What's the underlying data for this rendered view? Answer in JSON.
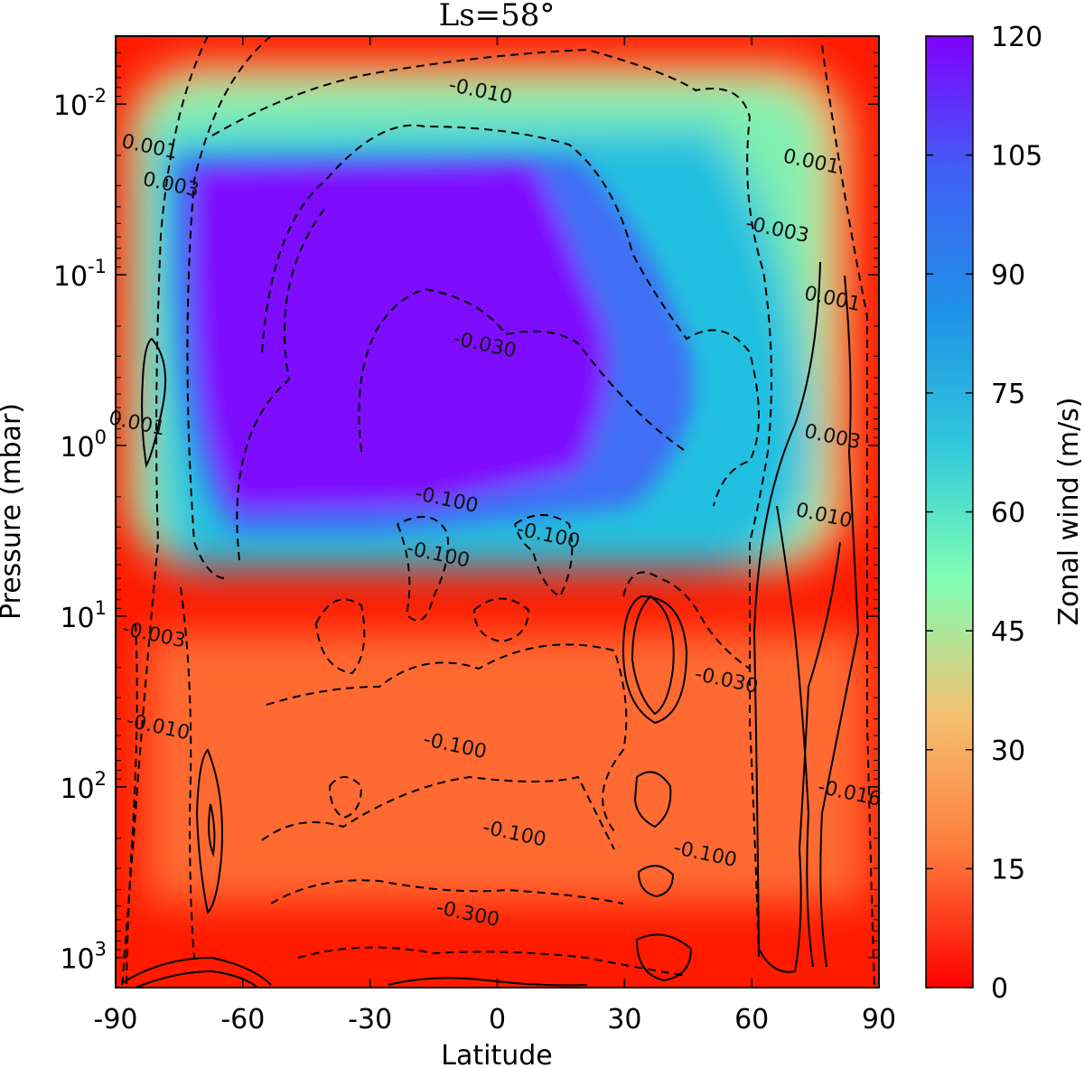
{
  "chart_data": {
    "type": "heatmap",
    "title": "Ls=58°",
    "xlabel": "Latitude",
    "ylabel": "Pressure (mbar)",
    "xlim": [
      -90,
      90
    ],
    "ylim": [
      1500,
      0.004
    ],
    "y_scale": "log",
    "y_inverted": true,
    "x_ticks": [
      "-90",
      "-60",
      "-30",
      "0",
      "30",
      "60",
      "90"
    ],
    "x_tick_values": [
      -90,
      -60,
      -30,
      0,
      30,
      60,
      90
    ],
    "y_ticks": [
      {
        "base": "10",
        "exp": "-2",
        "value": 0.01
      },
      {
        "base": "10",
        "exp": "-1",
        "value": 0.1
      },
      {
        "base": "10",
        "exp": "0",
        "value": 1
      },
      {
        "base": "10",
        "exp": "1",
        "value": 10
      },
      {
        "base": "10",
        "exp": "2",
        "value": 100
      },
      {
        "base": "10",
        "exp": "3",
        "value": 1000
      }
    ],
    "colorbar": {
      "label": "Zonal wind (m/s)",
      "ticks": [
        "0",
        "15",
        "30",
        "45",
        "60",
        "75",
        "90",
        "105",
        "120"
      ],
      "tick_values": [
        0,
        15,
        30,
        45,
        60,
        75,
        90,
        105,
        120
      ],
      "range": [
        0,
        120
      ],
      "colormap": "rainbow_r",
      "colors": [
        "#ff0000",
        "#ff7a3a",
        "#f5c070",
        "#80ffb4",
        "#30c8dc",
        "#1f90e8",
        "#4060f5",
        "#8000ff"
      ]
    },
    "contour_labels": [
      {
        "text": "0.001",
        "lat": -82,
        "p": 0.018
      },
      {
        "text": "0.003",
        "lat": -77,
        "p": 0.03
      },
      {
        "text": "-0.010",
        "lat": -4,
        "p": 0.0085
      },
      {
        "text": "0.001",
        "lat": 74,
        "p": 0.022
      },
      {
        "text": "-0.003",
        "lat": 66,
        "p": 0.055
      },
      {
        "text": "0.001",
        "lat": 79,
        "p": 0.14
      },
      {
        "text": "-0.030",
        "lat": -3,
        "p": 0.26
      },
      {
        "text": "0.001",
        "lat": -85,
        "p": 0.75
      },
      {
        "text": "0.003",
        "lat": 79,
        "p": 0.9
      },
      {
        "text": "-0.100",
        "lat": -12,
        "p": 2.1
      },
      {
        "text": "0.010",
        "lat": 77,
        "p": 2.6
      },
      {
        "text": "-0.100",
        "lat": 12,
        "p": 3.4
      },
      {
        "text": "-0.100",
        "lat": -14,
        "p": 4.4
      },
      {
        "text": "-0.003",
        "lat": -81,
        "p": 13
      },
      {
        "text": "-0.030",
        "lat": 54,
        "p": 24
      },
      {
        "text": "-0.010",
        "lat": -80,
        "p": 45
      },
      {
        "text": "-0.100",
        "lat": -10,
        "p": 58
      },
      {
        "text": "-0.016",
        "lat": 83,
        "p": 110
      },
      {
        "text": "-0.100",
        "lat": 4,
        "p": 190
      },
      {
        "text": "-0.100",
        "lat": 49,
        "p": 250
      },
      {
        "text": "-0.300",
        "lat": -7,
        "p": 560
      }
    ]
  }
}
